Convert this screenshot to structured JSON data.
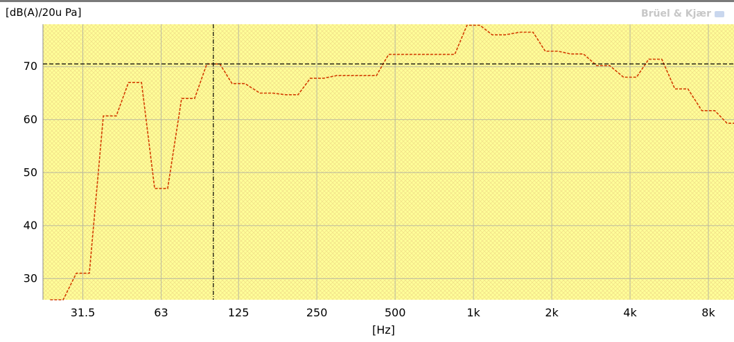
{
  "chart_data": {
    "type": "line",
    "step": true,
    "ylabel": "[dB(A)/20u Pa]",
    "xlabel": "[Hz]",
    "watermark": "Brüel & Kjær",
    "x_scale": "log (1/3 octave bands)",
    "ylim": [
      26,
      78
    ],
    "xlim_hz": [
      22.4,
      11000
    ],
    "x_ticks": [
      {
        "label": "31.5",
        "hz": 31.5
      },
      {
        "label": "63",
        "hz": 63
      },
      {
        "label": "125",
        "hz": 125
      },
      {
        "label": "250",
        "hz": 250
      },
      {
        "label": "500",
        "hz": 500
      },
      {
        "label": "1k",
        "hz": 1000
      },
      {
        "label": "2k",
        "hz": 2000
      },
      {
        "label": "4k",
        "hz": 4000
      },
      {
        "label": "8k",
        "hz": 8000
      }
    ],
    "y_ticks": [
      30,
      40,
      50,
      60,
      70
    ],
    "grid": true,
    "background_color": "#ffff99",
    "hatch_color": "#f2e28a",
    "series": [
      {
        "color": "#d23a00",
        "style": "dashed-step",
        "bands": [
          {
            "hz": 25,
            "value": 26
          },
          {
            "hz": 31.5,
            "value": 31
          },
          {
            "hz": 40,
            "value": 60.7
          },
          {
            "hz": 50,
            "value": 67
          },
          {
            "hz": 63,
            "value": 47
          },
          {
            "hz": 80,
            "value": 64
          },
          {
            "hz": 100,
            "value": 70.5
          },
          {
            "hz": 125,
            "value": 66.8
          },
          {
            "hz": 160,
            "value": 65
          },
          {
            "hz": 200,
            "value": 64.7
          },
          {
            "hz": 250,
            "value": 67.8
          },
          {
            "hz": 315,
            "value": 68.3
          },
          {
            "hz": 400,
            "value": 68.3
          },
          {
            "hz": 500,
            "value": 72.3
          },
          {
            "hz": 630,
            "value": 72.3
          },
          {
            "hz": 800,
            "value": 72.3
          },
          {
            "hz": 1000,
            "value": 77.8
          },
          {
            "hz": 1250,
            "value": 76
          },
          {
            "hz": 1600,
            "value": 76.5
          },
          {
            "hz": 2000,
            "value": 72.9
          },
          {
            "hz": 2500,
            "value": 72.4
          },
          {
            "hz": 3150,
            "value": 70.2
          },
          {
            "hz": 4000,
            "value": 68
          },
          {
            "hz": 5000,
            "value": 71.4
          },
          {
            "hz": 6300,
            "value": 65.8
          },
          {
            "hz": 8000,
            "value": 61.7
          },
          {
            "hz": 10000,
            "value": 59.3
          }
        ]
      }
    ],
    "reference_line": {
      "value": 70.5,
      "color": "#000000",
      "style": "dashed"
    },
    "cursor_line": {
      "hz": 100,
      "color": "#000000",
      "style": "dash-dot"
    }
  }
}
